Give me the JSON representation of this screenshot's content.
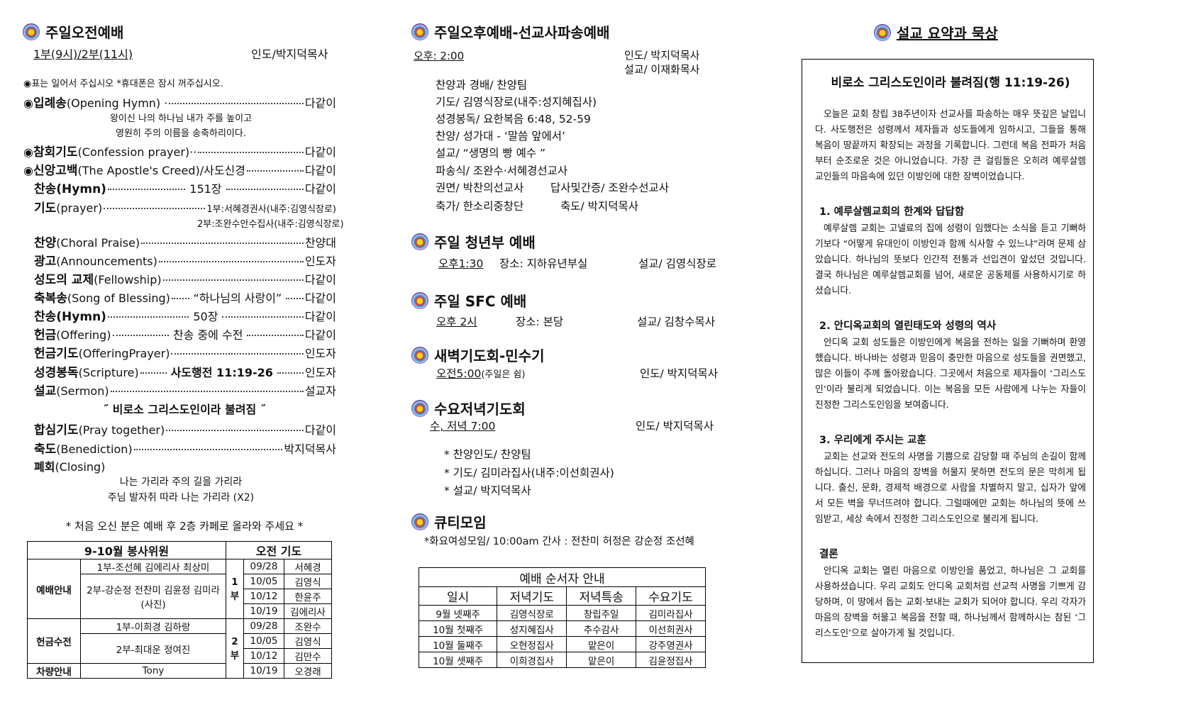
{
  "morning": {
    "title": "주일오전예배",
    "time": "1부(9시)/2부(11시)",
    "leader": "인도/박지덕목사",
    "note": "◉표는 일어서 주십시오 *휴대폰은 잠시 꺼주십시오.",
    "items": [
      {
        "mark": "◉",
        "ko": "입례송",
        "en": "(Opening Hymn) ·",
        "mid": "",
        "right": "다같이"
      },
      {
        "mark": "◉",
        "ko": "참회기도",
        "en": "(Confession prayer)··",
        "mid": "",
        "right": "다같이"
      },
      {
        "mark": "◉",
        "ko": "신앙고백",
        "en": "(The Apostle's Creed)/사도신경",
        "mid": "",
        "right": "다같이"
      },
      {
        "mark": "",
        "ko": "찬송(Hymn)",
        "en": "",
        "mid": "151장",
        "right": "다같이"
      },
      {
        "mark": "",
        "ko": "기도",
        "en": "(prayer)",
        "mid": "",
        "right": "1부:서혜경권사(내주:김영식장로)"
      },
      {
        "mark": "",
        "ko": "찬양",
        "en": "(Choral Praise)",
        "mid": "",
        "right": "찬양대"
      },
      {
        "mark": "",
        "ko": "광고",
        "en": "(Announcements)",
        "mid": "",
        "right": "인도자"
      },
      {
        "mark": "",
        "ko": "성도의 교제",
        "en": "(Fellowship)",
        "mid": "",
        "right": "다같이"
      },
      {
        "mark": "",
        "ko": "축복송",
        "en": "(Song of Blessing)",
        "mid": "“하나님의 사랑이”",
        "right": "다같이"
      },
      {
        "mark": "",
        "ko": "찬송(Hymn)",
        "en": "",
        "mid": "50장",
        "right": "다같이"
      },
      {
        "mark": "",
        "ko": "헌금",
        "en": "(Offering)",
        "mid": "찬송 중에 수전",
        "right": "다같이"
      },
      {
        "mark": "",
        "ko": "헌금기도",
        "en": "(OfferingPrayer)",
        "mid": "",
        "right": "인도자"
      },
      {
        "mark": "",
        "ko": "성경봉독",
        "en": "(Scripture)",
        "mid": "사도행전 11:19-26",
        "right": "인도자"
      },
      {
        "mark": "",
        "ko": "설교",
        "en": "(Sermon)",
        "mid": "",
        "right": "설교자"
      },
      {
        "mark": "",
        "ko": "합심기도",
        "en": "(Pray together)",
        "mid": "",
        "right": "다같이"
      },
      {
        "mark": "",
        "ko": "축도",
        "en": "(Benediction)",
        "mid": "",
        "right": "박지덕목사"
      }
    ],
    "opening_lyrics": [
      "왕이신 나의 하나님 내가 주를 높이고",
      "영원히 주의 이름을 송축하리이다."
    ],
    "prayer_2": "2부:조완수안수집사(내주:김영식장로)",
    "sermon_title": "˝ 비로소 그리스도인이라 불려짐 ˝",
    "closing": {
      "ko": "폐회",
      "en": "(Closing)"
    },
    "closing_lyrics": [
      "나는 가리라 주의 길을 가리라",
      "주님 발자취 따라 나는 가리라 (X2)"
    ],
    "visitor_note": "* 처음 오신 분은 예배 후 2층 카페로 올라와 주세요 *"
  },
  "volunteers": {
    "header_left": "9-10월  봉사위원",
    "header_right": "오전 기도",
    "rows": [
      {
        "role": "예배안내",
        "names": [
          "1부-조선혜 김에리사 최상미",
          "2부-강순정 전찬미 김윤정 김미라(사진)"
        ]
      },
      {
        "role": "헌금수전",
        "names": [
          "1부-이희경 김하랑",
          "2부-최대운 정여진"
        ]
      },
      {
        "role": "차량안내",
        "names": [
          "Tony"
        ]
      }
    ],
    "prayer": [
      {
        "part": "1부",
        "entries": [
          [
            "09/28",
            "서혜경"
          ],
          [
            "10/05",
            "김영식"
          ],
          [
            "10/12",
            "한윤주"
          ],
          [
            "10/19",
            "김에리사"
          ]
        ]
      },
      {
        "part": "2부",
        "entries": [
          [
            "09/28",
            "조완수"
          ],
          [
            "10/05",
            "김영식"
          ],
          [
            "10/12",
            "김만수"
          ],
          [
            "10/19",
            "오경래"
          ]
        ]
      }
    ]
  },
  "afternoon": {
    "title": "주일오후예배-선교사파송예배",
    "time": "오후:  2:00",
    "leader": "인도/ 박지덕목사",
    "preacher": "설교/ 이재화목사",
    "lines": [
      "찬양과 경배/ 찬양팀",
      "기도/ 김영식장로(내주:성지혜집사)",
      "성경봉독/ 요한복음 6:48, 52-59",
      "찬양/ 성가대 - ‘말씀 앞에서’",
      "설교/ “생명의 빵 예수 ”",
      "파송식/ 조완수·서혜경선교사"
    ],
    "pair1": [
      "권면/ 박찬의선교사",
      "답사및간증/ 조완수선교사"
    ],
    "pair2": [
      "축가/ 한소리중창단",
      "축도/ 박지덕목사"
    ]
  },
  "youth": {
    "title": "주일 청년부 예배",
    "time": "오후1:30",
    "place": "장소: 지하유년부실",
    "preacher": "설교/ 김영식장로"
  },
  "sfc": {
    "title": "주일 SFC 예배",
    "time": "오후 2시",
    "place": "장소: 본당",
    "preacher": "설교/ 김창수목사"
  },
  "dawn": {
    "title": "새벽기도회-민수기",
    "time": "오전5:00",
    "time_note": "(주일은 쉼)",
    "leader": "인도/ 박지덕목사"
  },
  "wednesday": {
    "title": "수요저녁기도회",
    "time": "수, 저녁  7:00",
    "leader": "인도/ 박지덕목사",
    "items": [
      "*  찬양인도/ 찬양팀",
      "*  기도/ 김미라집사(내주:이선희권사)",
      "*  설교/ 박지덕목사"
    ]
  },
  "qt": {
    "title": "큐티모임",
    "line": "*화요여성모임/  10:00am    간사 : 전찬미 허정은 강순정 조선혜"
  },
  "schedule": {
    "title": "예배 순서자 안내",
    "columns": [
      "일시",
      "저녁기도",
      "저녁특송",
      "수요기도"
    ],
    "rows": [
      [
        "9월 넷째주",
        "김영식장로",
        "창립주일",
        "김미라집사"
      ],
      [
        "10월 첫째주",
        "성지혜집사",
        "추수감사",
        "이선희권사"
      ],
      [
        "10월 둘째주",
        "오현정집사",
        "맡은이",
        "강주영권사"
      ],
      [
        "10월 셋째주",
        "이희경집사",
        "맡은이",
        "김윤정집사"
      ]
    ]
  },
  "sermon": {
    "section_title": "설교 요약과 묵상",
    "title": "비로소 그리스도인이라 불려짐(행 11:19-26)",
    "blocks": [
      {
        "heading": "",
        "text": "오늘은 교회 창립 38주년이자 선교사를 파송하는 매우 뜻깊은 날입니다. 사도행전은 성령께서 제자들과 성도들에게 임하시고, 그들을 통해 복음이 땅끝까지 확장되는 과정을 기록합니다. 그런데 복음 전파가 처음부터 순조로운 것은 아니었습니다. 가장 큰 걸림돌은 오히려 예루살렘 교인들의 마음속에 있던 이방인에 대한 장벽이었습니다."
      },
      {
        "heading": "1. 예루살렘교회의 한계와 답답함",
        "text": "예루살렘 교회는 고넬료의 집에 성령이 임했다는 소식을 듣고 기뻐하기보다 “어떻게 유대인이 이방인과 함께 식사할 수 있느냐”라며 문제 삼았습니다. 하나님의 뜻보다 인간적 전통과 선입견이 앞섰던 것입니다. 결국 하나님은 예루살렘교회를 넘어, 새로운 공동체를 사용하시기로 하셨습니다."
      },
      {
        "heading": "2. 안디옥교회의 열린태도와 성령의 역사",
        "text": "안디옥 교회 성도들은 이방인에게 복음을 전하는 일을 기뻐하며 환영했습니다. 바나바는 성령과 믿음이 충만한 마음으로 성도들을 권면했고, 많은 이들이 주께 돌아왔습니다. 그곳에서 처음으로 제자들이 ‘그리스도인’이라 불리게 되었습니다. 이는 복음을 모든 사람에게 나누는 자들이 진정한 그리스도인임을 보여줍니다."
      },
      {
        "heading": "3. 우리에게 주시는 교훈",
        "text": "교회는 선교와 전도의 사명을 기쁨으로 감당할 때 주님의 손길이 함께하십니다. 그러나 마음의 장벽을 허물지 못하면 전도의 문은 막히게 됩니다. 출신, 문화, 경제적 배경으로 사람을 차별하지 말고, 십자가 앞에서 모든 벽을 무너뜨려야 합니다. 그럴때에만 교회는 하나님의 뜻에 쓰임받고, 세상 속에서 진정한 그리스도인으로 불리게 됩니다."
      },
      {
        "heading": "결론",
        "text": "안디옥 교회는 열린 마음으로 이방인을 품었고, 하나님은 그 교회를 사용하셨습니다. 우리 교회도 안디옥 교회처럼 선교적 사명을 기쁘게 감당하며, 이 땅에서 돕는 교회·보내는 교회가 되어야 합니다. 우리 각자가 마음의 장벽을 허물고 복음을 전할 때, 하나님께서 함께하시는 참된 ‘그리스도인’으로 살아가게 될 것입니다."
      }
    ]
  }
}
